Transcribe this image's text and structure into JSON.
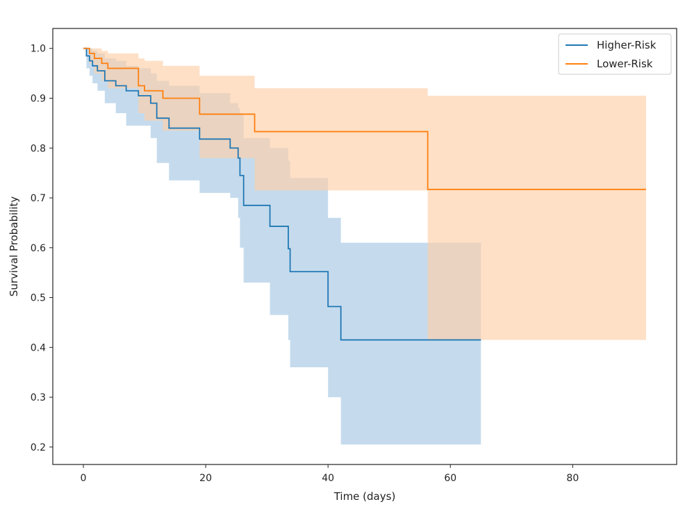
{
  "chart_data": {
    "type": "line",
    "subtype": "kaplan-meier step survival curves with confidence bands",
    "title": "",
    "xlabel": "Time (days)",
    "ylabel": "Survival Probability",
    "xlim": [
      -5,
      97
    ],
    "ylim": [
      0.165,
      1.04
    ],
    "xticks": [
      0,
      20,
      40,
      60,
      80
    ],
    "yticks": [
      0.2,
      0.3,
      0.4,
      0.5,
      0.6,
      0.7,
      0.8,
      0.9,
      1.0
    ],
    "xtick_labels": [
      "0",
      "20",
      "40",
      "60",
      "80"
    ],
    "ytick_labels": [
      "0.2",
      "0.3",
      "0.4",
      "0.5",
      "0.6",
      "0.7",
      "0.8",
      "0.9",
      "1.0"
    ],
    "grid": false,
    "legend_position": "top-right",
    "series": [
      {
        "name": "Higher-Risk",
        "color": "#1f77b4",
        "band_color": "#a6c8e4",
        "x": [
          0,
          0.5,
          1,
          1.5,
          2.3,
          3.5,
          5.3,
          7,
          9,
          11,
          12,
          14,
          19,
          24,
          25.3,
          25.6,
          26.2,
          30.5,
          33.5,
          33.8,
          40,
          42.1,
          65
        ],
        "y": [
          1.0,
          0.985,
          0.975,
          0.965,
          0.955,
          0.935,
          0.925,
          0.915,
          0.905,
          0.89,
          0.86,
          0.84,
          0.818,
          0.8,
          0.78,
          0.745,
          0.685,
          0.643,
          0.598,
          0.552,
          0.482,
          0.415,
          0.415
        ],
        "lower": [
          1.0,
          0.96,
          0.945,
          0.93,
          0.915,
          0.89,
          0.87,
          0.845,
          0.845,
          0.82,
          0.77,
          0.735,
          0.71,
          0.7,
          0.66,
          0.6,
          0.53,
          0.465,
          0.415,
          0.36,
          0.3,
          0.205,
          0.205
        ],
        "upper": [
          1.0,
          1.0,
          1.0,
          0.995,
          0.99,
          0.98,
          0.975,
          0.965,
          0.96,
          0.95,
          0.935,
          0.925,
          0.91,
          0.89,
          0.88,
          0.87,
          0.82,
          0.8,
          0.775,
          0.74,
          0.66,
          0.61,
          0.61
        ]
      },
      {
        "name": "Lower-Risk",
        "color": "#ff7f0e",
        "band_color": "#fdd0a8",
        "x": [
          0,
          1,
          1.8,
          3,
          4,
          9,
          10,
          13,
          19,
          28,
          56.3,
          92
        ],
        "y": [
          1.0,
          0.99,
          0.98,
          0.97,
          0.96,
          0.925,
          0.915,
          0.9,
          0.868,
          0.833,
          0.717,
          0.717
        ],
        "lower": [
          1.0,
          0.97,
          0.95,
          0.935,
          0.92,
          0.87,
          0.855,
          0.835,
          0.78,
          0.715,
          0.415,
          0.415
        ],
        "upper": [
          1.0,
          1.0,
          1.0,
          0.995,
          0.99,
          0.98,
          0.975,
          0.965,
          0.945,
          0.92,
          0.905,
          0.88
        ]
      }
    ]
  }
}
